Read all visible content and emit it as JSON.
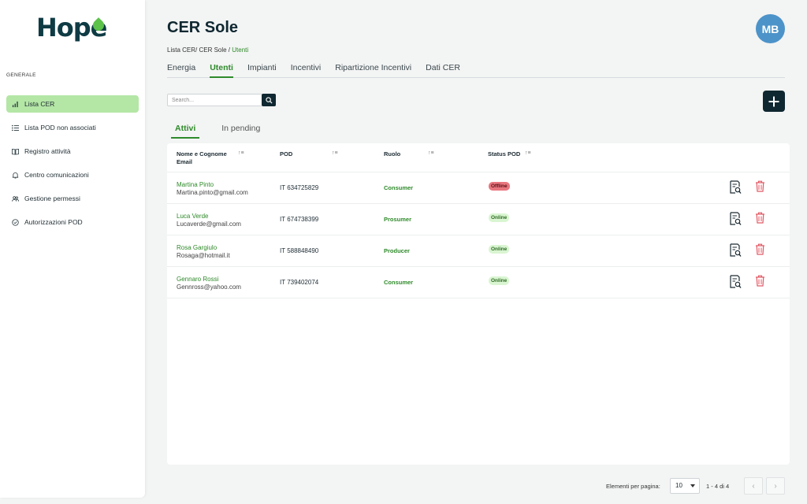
{
  "logo": {
    "text_before": "Hop",
    "text_e": "e",
    "leaf_color": "#5cc24a"
  },
  "sidebar": {
    "section_label": "GENERALE",
    "items": [
      {
        "label": "Lista CER",
        "icon": "chart-bars-icon"
      },
      {
        "label": "Lista POD non associati",
        "icon": "list-icon"
      },
      {
        "label": "Registro attività",
        "icon": "book-icon"
      },
      {
        "label": "Centro comunicazioni",
        "icon": "bell-icon"
      },
      {
        "label": "Gestione permessi",
        "icon": "users-icon"
      },
      {
        "label": "Autorizzazioni POD",
        "icon": "check-circle-icon"
      }
    ]
  },
  "header": {
    "title": "CER Sole",
    "breadcrumb": {
      "path": "Lista CER/ CER Sole / ",
      "current": "Utenti"
    },
    "avatar": "MB"
  },
  "tabs": [
    "Energia",
    "Utenti",
    "Impianti",
    "Incentivi",
    "Ripartizione Incentivi",
    "Dati CER"
  ],
  "search": {
    "placeholder": "Search..."
  },
  "subtabs": [
    "Attivi",
    "In pending"
  ],
  "table": {
    "headers": {
      "name": "Nome e Cognome",
      "email": "Email",
      "pod": "POD",
      "role": "Ruolo",
      "status": "Status POD",
      "sort_glyph": "↑≡"
    },
    "rows": [
      {
        "name": "Martina Pinto",
        "email": "Martina.pinto@gmail.com",
        "pod": "IT 634725829",
        "role": "Consumer",
        "status": "Offline"
      },
      {
        "name": "Luca Verde",
        "email": "Lucaverde@gmail.com",
        "pod": "IT 674738399",
        "role": "Prosumer",
        "status": "Online"
      },
      {
        "name": "Rosa Gargiulo",
        "email": "Rosaga@hotmail.it",
        "pod": "IT 588848490",
        "role": "Producer",
        "status": "Online"
      },
      {
        "name": "Gennaro Rossi",
        "email": "Gennross@yahoo.com",
        "pod": "IT 739402074",
        "role": "Consumer",
        "status": "Online"
      }
    ]
  },
  "pagination": {
    "label": "Elementi per pagina:",
    "page_size": "10",
    "range": "1 - 4 di 4",
    "prev": "‹",
    "next": "›"
  },
  "colors": {
    "accent": "#2e8a2a",
    "dark": "#0f2730",
    "active_nav": "#b4e6a6",
    "avatar": "#4c93c9",
    "delete": "#e05a66"
  }
}
